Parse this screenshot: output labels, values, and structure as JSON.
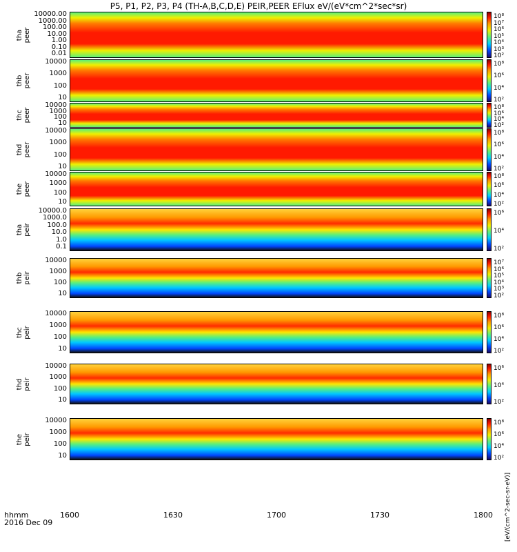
{
  "title": "P5, P1, P2, P3, P4 (TH-A,B,C,D,E) PEIR,PEER EFlux eV/(eV*cm^2*sec*sr)",
  "colorbar_unit": "[eV/(cm^2-sec-sr-eV)]",
  "footer": {
    "line1": "hhmm",
    "line2": "2016 Dec 09"
  },
  "colors": {
    "low": "#1a0a6e",
    "mid": "#5cf07a",
    "high": "#ff1a00",
    "max": "#8a0000"
  },
  "chart_data": {
    "type": "heatmap",
    "x_axis": {
      "label": "hhmm",
      "ticks": [
        "1600",
        "1630",
        "1700",
        "1730",
        "1800"
      ],
      "range": [
        "1600",
        "1800"
      ]
    },
    "panels": [
      {
        "label": "tha peer",
        "yticks": [
          "10000.00",
          "1000.00",
          "100.00",
          "10.00",
          "1.00",
          "0.10",
          "0.01"
        ],
        "colorbar_ticks": [
          "10^8",
          "10^7",
          "10^6",
          "10^5",
          "10^4",
          "10^3",
          "10^2"
        ],
        "scale": "log"
      },
      {
        "label": "thb peer",
        "yticks": [
          "10000",
          "1000",
          "100",
          "10"
        ],
        "colorbar_ticks": [
          "10^8",
          "10^6",
          "10^4",
          "10^2"
        ],
        "scale": "log"
      },
      {
        "label": "thc peer",
        "yticks": [
          "10000",
          "1000",
          "100",
          "10"
        ],
        "colorbar_ticks": [
          "10^8",
          "10^6",
          "10^4",
          "10^2"
        ],
        "scale": "log"
      },
      {
        "label": "thd peer",
        "yticks": [
          "10000",
          "1000",
          "100",
          "10"
        ],
        "colorbar_ticks": [
          "10^8",
          "10^6",
          "10^4",
          "10^2"
        ],
        "scale": "log"
      },
      {
        "label": "the peer",
        "yticks": [
          "10000",
          "1000",
          "100",
          "10"
        ],
        "colorbar_ticks": [
          "10^8",
          "10^6",
          "10^4",
          "10^2"
        ],
        "scale": "log"
      },
      {
        "label": "tha peir",
        "yticks": [
          "10000.0",
          "1000.0",
          "100.0",
          "10.0",
          "1.0",
          "0.1"
        ],
        "colorbar_ticks": [
          "10^6",
          "10^4",
          "10^2"
        ],
        "scale": "log"
      },
      {
        "label": "thb peir",
        "yticks": [
          "10000",
          "1000",
          "100",
          "10"
        ],
        "colorbar_ticks": [
          "10^7",
          "10^6",
          "10^5",
          "10^4",
          "10^3",
          "10^2"
        ],
        "scale": "log"
      },
      {
        "label": "thc peir",
        "yticks": [
          "10000",
          "1000",
          "100",
          "10"
        ],
        "colorbar_ticks": [
          "10^8",
          "10^6",
          "10^4",
          "10^2"
        ],
        "scale": "log"
      },
      {
        "label": "thd peir",
        "yticks": [
          "10000",
          "1000",
          "100",
          "10"
        ],
        "colorbar_ticks": [
          "10^6",
          "10^4",
          "10^2"
        ],
        "scale": "log"
      },
      {
        "label": "the peir",
        "yticks": [
          "10000",
          "1000",
          "100",
          "10"
        ],
        "colorbar_ticks": [
          "10^8",
          "10^6",
          "10^4",
          "10^2"
        ],
        "scale": "log"
      }
    ]
  }
}
